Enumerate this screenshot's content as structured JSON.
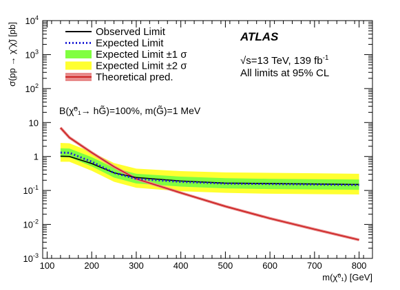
{
  "chart_data": {
    "type": "line",
    "xlabel": "m(χ̃⁰₁) [GeV]",
    "ylabel": "σ(pp → χ̃ χ̃) [pb]",
    "xlim": [
      90,
      830
    ],
    "ylim": [
      0.001,
      10000
    ],
    "yscale": "log",
    "x_ticks": [
      100,
      200,
      300,
      400,
      500,
      600,
      700,
      800
    ],
    "y_ticks": [
      {
        "value": 0.001,
        "base": "10",
        "exp": "-3"
      },
      {
        "value": 0.01,
        "base": "10",
        "exp": "-2"
      },
      {
        "value": 0.1,
        "base": "10",
        "exp": "-1"
      },
      {
        "value": 1,
        "base": "1",
        "exp": ""
      },
      {
        "value": 10,
        "base": "10",
        "exp": ""
      },
      {
        "value": 100,
        "base": "10",
        "exp": "2"
      },
      {
        "value": 1000,
        "base": "10",
        "exp": "3"
      },
      {
        "value": 10000,
        "base": "10",
        "exp": "4"
      }
    ],
    "x": [
      130,
      150,
      200,
      250,
      300,
      400,
      500,
      600,
      700,
      800
    ],
    "series": [
      {
        "name": "Observed Limit",
        "color": "#000000",
        "values": [
          1.02,
          1.0,
          0.62,
          0.33,
          0.24,
          0.19,
          0.165,
          0.16,
          0.155,
          0.15
        ]
      },
      {
        "name": "Expected Limit",
        "color": "#1f1fd6",
        "values": [
          1.3,
          1.28,
          0.7,
          0.33,
          0.22,
          0.18,
          0.16,
          0.155,
          0.15,
          0.145
        ]
      },
      {
        "name": "Theoretical pred.",
        "color": "#cc2222",
        "values": [
          7.0,
          3.6,
          1.3,
          0.5,
          0.22,
          0.085,
          0.034,
          0.015,
          0.0072,
          0.0035
        ]
      }
    ],
    "bands": {
      "expected_1sigma": {
        "name": "Expected Limit ±1 σ",
        "color": "#80ff40",
        "low": [
          0.95,
          0.95,
          0.51,
          0.24,
          0.16,
          0.13,
          0.115,
          0.11,
          0.107,
          0.104
        ],
        "high": [
          1.75,
          1.72,
          0.96,
          0.46,
          0.31,
          0.255,
          0.23,
          0.22,
          0.215,
          0.21
        ]
      },
      "expected_2sigma": {
        "name": "Expected Limit ±2 σ",
        "color": "#ffff30",
        "low": [
          0.7,
          0.7,
          0.38,
          0.18,
          0.12,
          0.095,
          0.085,
          0.08,
          0.078,
          0.076
        ],
        "high": [
          2.5,
          2.45,
          1.35,
          0.64,
          0.44,
          0.37,
          0.34,
          0.33,
          0.32,
          0.31
        ]
      }
    },
    "theory_band_color": "#e88a8a",
    "legend": {
      "placement": "top-left",
      "entries": [
        {
          "label": "Observed Limit",
          "kind": "line",
          "color": "#000000"
        },
        {
          "label": "Expected Limit",
          "kind": "dash",
          "color": "#1f1fd6"
        },
        {
          "label": "Expected Limit ±1 σ",
          "kind": "box",
          "color": "#80ff40"
        },
        {
          "label": "Expected Limit ±2 σ",
          "kind": "box",
          "color": "#ffff30"
        },
        {
          "label": "Theoretical pred.",
          "kind": "theory",
          "color": "#cc2222"
        }
      ]
    },
    "annotations": {
      "experiment": "ATLAS",
      "energy_prefix": "√s=13 TeV, 139 fb",
      "energy_sup": "-1",
      "cl": "All limits at 95% CL",
      "br": "B(χ̃⁰₁→ hG̃)=100%, m(G̃)=1 MeV"
    }
  }
}
